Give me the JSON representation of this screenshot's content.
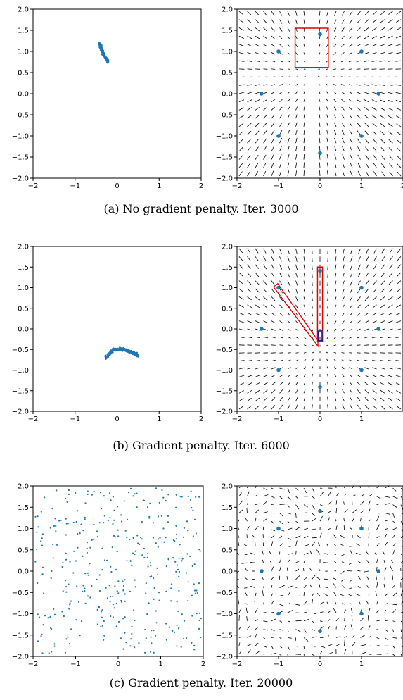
{
  "figure": {
    "rows": [
      {
        "caption": "(a) No gradient penalty. Iter. 3000"
      },
      {
        "caption": "(b) Gradient penalty. Iter. 6000"
      },
      {
        "caption": "(c) Gradient penalty. Iter. 20000"
      }
    ]
  },
  "chart_data": [
    {
      "panel": "a-left",
      "type": "scatter",
      "xlim": [
        -2,
        2
      ],
      "ylim": [
        -2,
        2
      ],
      "x_ticks": [
        -2,
        -1,
        0,
        1,
        2
      ],
      "y_ticks": [
        -2.0,
        -1.5,
        -1.0,
        -0.5,
        0.0,
        0.5,
        1.0,
        1.5,
        2.0
      ],
      "x_tick_labels": [
        "−2",
        "−1",
        "0",
        "1",
        "2"
      ],
      "y_tick_labels": [
        "−2.0",
        "−1.5",
        "−1.0",
        "−0.5",
        "0.0",
        "0.5",
        "1.0",
        "1.5",
        "2.0"
      ],
      "color": "#1f77b4",
      "cluster": {
        "path": [
          [
            -0.42,
            1.2
          ],
          [
            -0.33,
            0.95
          ],
          [
            -0.22,
            0.75
          ]
        ],
        "spread": 0.04,
        "count": 160
      }
    },
    {
      "panel": "a-right",
      "type": "quiver",
      "xlim": [
        -2,
        2
      ],
      "ylim": [
        -2,
        2
      ],
      "x_ticks": [
        -2,
        -1,
        0,
        1,
        2
      ],
      "y_ticks": [
        -2.0,
        -1.5,
        -1.0,
        -0.5,
        0.0,
        0.5,
        1.0,
        1.5,
        2.0
      ],
      "x_tick_labels": [
        "−2",
        "−1",
        "0",
        "1",
        "2"
      ],
      "y_tick_labels": [
        "−2.0",
        "−1.5",
        "−1.0",
        "−0.5",
        "0.0",
        "0.5",
        "1.0",
        "1.5",
        "2.0"
      ],
      "field": {
        "mode": "converge",
        "center": [
          -0.2,
          0.5
        ]
      },
      "real_points": [
        [
          0,
          1.41
        ],
        [
          1,
          1
        ],
        [
          1.41,
          0
        ],
        [
          1,
          -1
        ],
        [
          0,
          -1.41
        ],
        [
          -1,
          -1
        ],
        [
          -1.41,
          0
        ],
        [
          -1,
          1
        ]
      ],
      "annotations": [
        {
          "shape": "rect",
          "color": "#e00000",
          "points": [
            [
              -0.6,
              1.55
            ],
            [
              0.2,
              0.62
            ]
          ]
        }
      ]
    },
    {
      "panel": "b-left",
      "type": "scatter",
      "xlim": [
        -2,
        2
      ],
      "ylim": [
        -2,
        2
      ],
      "x_ticks": [
        -2,
        -1,
        0,
        1,
        2
      ],
      "y_ticks": [
        -2.0,
        -1.5,
        -1.0,
        -0.5,
        0.0,
        0.5,
        1.0,
        1.5,
        2.0
      ],
      "x_tick_labels": [
        "−2",
        "−1",
        "0",
        "1",
        "2"
      ],
      "y_tick_labels": [
        "−2.0",
        "−1.5",
        "−1.0",
        "−0.5",
        "0.0",
        "0.5",
        "1.0",
        "1.5",
        "2.0"
      ],
      "color": "#1f77b4",
      "cluster": {
        "path": [
          [
            -0.28,
            -0.72
          ],
          [
            -0.12,
            -0.52
          ],
          [
            0.1,
            -0.48
          ],
          [
            0.32,
            -0.55
          ],
          [
            0.5,
            -0.65
          ]
        ],
        "spread": 0.05,
        "count": 220
      }
    },
    {
      "panel": "b-right",
      "type": "quiver",
      "xlim": [
        -2,
        2
      ],
      "ylim": [
        -2,
        2
      ],
      "x_ticks": [
        -2,
        -1,
        0,
        1
      ],
      "y_ticks": [
        -2.0,
        -1.5,
        -1.0,
        -0.5,
        0.0,
        0.5,
        1.0,
        1.5,
        2.0
      ],
      "x_tick_labels": [
        "−2",
        "−1",
        "0",
        "1"
      ],
      "y_tick_labels": [
        "−2.0",
        "−1.5",
        "−1.0",
        "−0.5",
        "0.0",
        "0.5",
        "1.0",
        "1.5",
        "2.0"
      ],
      "field": {
        "mode": "converge",
        "center": [
          0,
          -0.5
        ]
      },
      "real_points": [
        [
          0,
          1.41
        ],
        [
          1,
          1
        ],
        [
          1.41,
          0
        ],
        [
          1,
          -1
        ],
        [
          0,
          -1.41
        ],
        [
          -1,
          -1
        ],
        [
          -1.41,
          0
        ],
        [
          -1,
          1
        ]
      ],
      "annotations": [
        {
          "shape": "polygon",
          "color": "#e00000",
          "points": [
            [
              -1.12,
              1.02
            ],
            [
              -1.02,
              1.1
            ],
            [
              -0.05,
              -0.28
            ],
            [
              -0.05,
              -0.42
            ]
          ]
        },
        {
          "shape": "rect",
          "color": "#e00000",
          "points": [
            [
              -0.06,
              1.5
            ],
            [
              0.06,
              -0.3
            ]
          ]
        },
        {
          "shape": "rect",
          "color": "#1a1aa0",
          "points": [
            [
              -0.04,
              -0.05
            ],
            [
              0.05,
              -0.28
            ]
          ]
        }
      ]
    },
    {
      "panel": "c-left",
      "type": "scatter",
      "xlim": [
        -2,
        2
      ],
      "ylim": [
        -2,
        2
      ],
      "x_ticks": [
        -2,
        -1,
        0,
        1,
        2
      ],
      "y_ticks": [
        -2.0,
        -1.5,
        -1.0,
        -0.5,
        0.0,
        0.5,
        1.0,
        1.5,
        2.0
      ],
      "x_tick_labels": [
        "−2",
        "−1",
        "0",
        "1",
        "2"
      ],
      "y_tick_labels": [
        "−2.0",
        "−1.5",
        "−1.0",
        "−0.5",
        "0.0",
        "0.5",
        "1.0",
        "1.5",
        "2.0"
      ],
      "color": "#1f77b4",
      "scatter_uniform": {
        "x_range": [
          -1.95,
          1.95
        ],
        "y_range": [
          -1.95,
          1.95
        ],
        "count": 380
      }
    },
    {
      "panel": "c-right",
      "type": "quiver",
      "xlim": [
        -2,
        2
      ],
      "ylim": [
        -2,
        2
      ],
      "x_ticks": [
        -2,
        -1,
        0,
        1
      ],
      "y_ticks": [
        -2.0,
        -1.5,
        -1.0,
        -0.5,
        0.0,
        0.5,
        1.0,
        1.5,
        2.0
      ],
      "x_tick_labels": [
        "−2",
        "−1",
        "0",
        "1"
      ],
      "y_tick_labels": [
        "−2.0",
        "−1.5",
        "−1.0",
        "−0.5",
        "0.0",
        "0.5",
        "1.0",
        "1.5",
        "2.0"
      ],
      "field": {
        "mode": "turbulent"
      },
      "real_points": [
        [
          0,
          1.41
        ],
        [
          1,
          1
        ],
        [
          1.41,
          0
        ],
        [
          1,
          -1
        ],
        [
          0,
          -1.41
        ],
        [
          -1,
          -1
        ],
        [
          -1.41,
          0
        ],
        [
          -1,
          1
        ]
      ],
      "annotations": []
    }
  ]
}
